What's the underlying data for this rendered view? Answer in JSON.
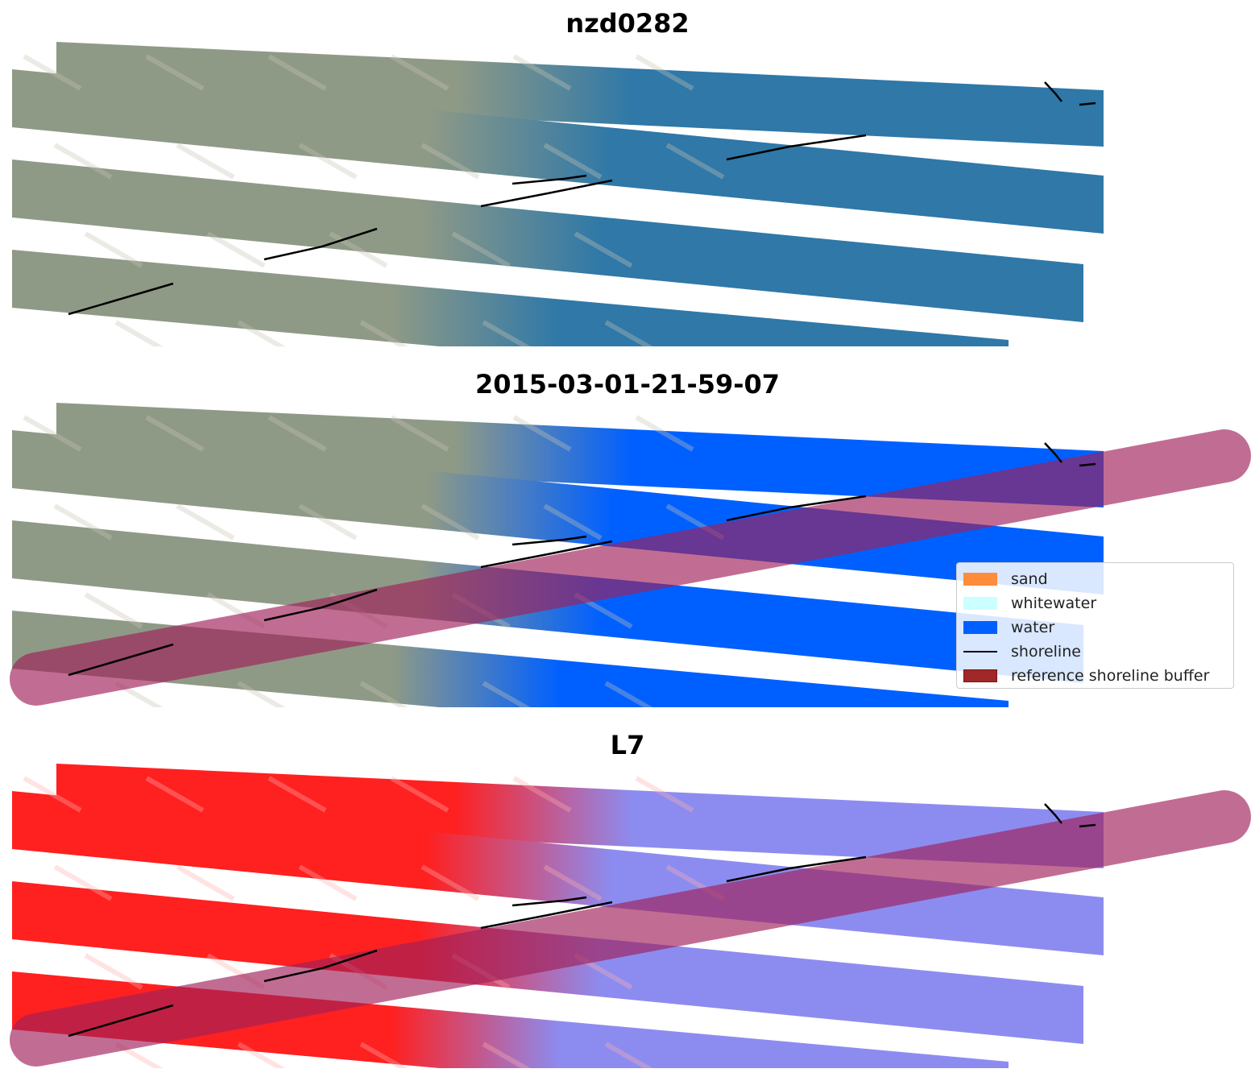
{
  "panels": [
    {
      "title": "nzd0282",
      "style": "rgb"
    },
    {
      "title": "2015-03-01-21-59-07",
      "style": "classified"
    },
    {
      "title": "L7",
      "style": "index"
    }
  ],
  "legend": {
    "items": [
      {
        "label": "sand",
        "color": "#ff8c3a",
        "kind": "patch"
      },
      {
        "label": "whitewater",
        "color": "#ccffff",
        "kind": "patch"
      },
      {
        "label": "water",
        "color": "#0060ff",
        "kind": "patch"
      },
      {
        "label": "shoreline",
        "color": "#000000",
        "kind": "line"
      },
      {
        "label": "reference shoreline buffer",
        "color": "#a02828",
        "kind": "patch"
      }
    ]
  },
  "colors": {
    "land_rgb": "#8f9a86",
    "water_rgb": "#2f78a8",
    "water_class": "#0060ff",
    "land_index": "#ff2020",
    "water_index": "#8c8cf0",
    "buffer": "#a0205a",
    "shoreline": "#000000"
  }
}
